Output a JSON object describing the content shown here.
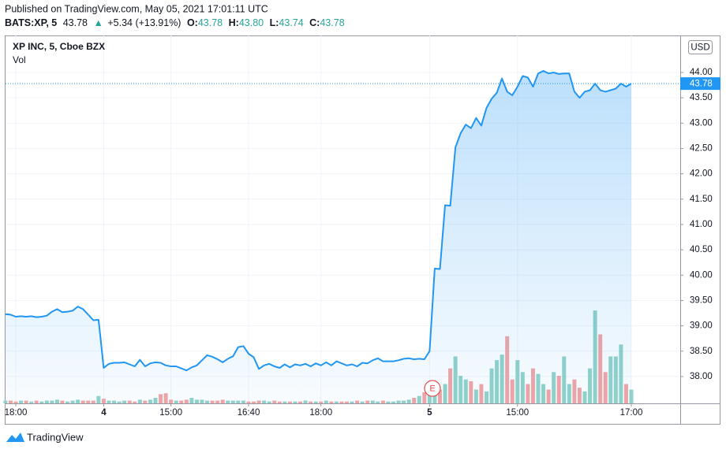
{
  "published": "Published on TradingView.com, May 05, 2021 17:01:11 UTC",
  "header": {
    "symbol": "BATS:XP, 5",
    "last": 43.78,
    "arrow": "▲",
    "change": "+5.34 (+13.91%)",
    "ohlc": [
      {
        "label": "O:",
        "value": "43.78"
      },
      {
        "label": "H:",
        "value": "43.80"
      },
      {
        "label": "L:",
        "value": "43.74"
      },
      {
        "label": "C:",
        "value": "43.78"
      }
    ]
  },
  "footer": "TradingView",
  "chart_data": {
    "type": "line",
    "title": "XP INC, 5, Cboe BZX",
    "currency": "USD",
    "event": "E",
    "categories": [
      null,
      null,
      "18:00",
      null,
      null,
      null,
      null,
      null,
      null,
      null,
      null,
      null,
      null,
      null,
      null,
      null,
      null,
      null,
      null,
      "4",
      null,
      null,
      null,
      null,
      null,
      null,
      null,
      null,
      null,
      null,
      null,
      null,
      "15:00",
      null,
      null,
      null,
      null,
      null,
      null,
      null,
      null,
      null,
      null,
      null,
      null,
      null,
      null,
      "16:40",
      null,
      null,
      null,
      null,
      null,
      null,
      null,
      null,
      null,
      null,
      null,
      null,
      null,
      "18:00",
      null,
      null,
      null,
      null,
      null,
      null,
      null,
      null,
      null,
      null,
      null,
      null,
      null,
      null,
      null,
      null,
      null,
      null,
      null,
      null,
      "5",
      null,
      null,
      null,
      null,
      null,
      null,
      null,
      null,
      null,
      null,
      null,
      null,
      null,
      null,
      null,
      null,
      "15:00",
      null,
      null,
      null,
      null,
      null,
      null,
      null,
      null,
      null,
      null,
      null,
      null,
      null,
      null,
      null,
      null,
      null,
      null,
      null,
      null,
      null,
      "17:00"
    ],
    "series": [
      {
        "name": "XP INC, 5, Cboe BZX",
        "color": "#2196f3",
        "values": [
          39.23,
          39.22,
          39.18,
          39.19,
          39.18,
          39.19,
          39.17,
          39.18,
          39.2,
          39.28,
          39.33,
          39.27,
          39.28,
          39.3,
          39.38,
          39.33,
          39.22,
          39.11,
          39.12,
          38.17,
          38.25,
          38.27,
          38.27,
          38.28,
          38.24,
          38.2,
          38.33,
          38.2,
          38.26,
          38.28,
          38.27,
          38.22,
          38.2,
          38.2,
          38.16,
          38.12,
          38.18,
          38.22,
          38.32,
          38.42,
          38.39,
          38.34,
          38.28,
          38.35,
          38.4,
          38.58,
          38.6,
          38.45,
          38.38,
          38.15,
          38.22,
          38.25,
          38.2,
          38.17,
          38.24,
          38.18,
          38.24,
          38.22,
          38.25,
          38.2,
          38.26,
          38.22,
          38.28,
          38.22,
          38.3,
          38.26,
          38.22,
          38.24,
          38.2,
          38.27,
          38.26,
          38.32,
          38.36,
          38.3,
          38.3,
          38.3,
          38.32,
          38.35,
          38.36,
          38.34,
          38.35,
          38.34,
          38.5,
          40.13,
          40.12,
          41.38,
          41.37,
          42.52,
          42.8,
          42.97,
          42.9,
          43.1,
          42.95,
          43.3,
          43.48,
          43.6,
          43.88,
          43.62,
          43.55,
          43.72,
          43.93,
          43.9,
          43.72,
          43.98,
          44.03,
          43.98,
          44.0,
          43.97,
          43.98,
          43.98,
          43.62,
          43.5,
          43.62,
          43.65,
          43.78,
          43.65,
          43.62,
          43.65,
          43.68,
          43.78,
          43.72,
          43.78
        ]
      },
      {
        "name": "Vol",
        "axis": "y2",
        "up_color": "#92d2c9",
        "down_color": "#f2a5a5",
        "values": [
          3,
          3,
          2,
          3,
          3,
          2,
          3,
          2,
          3,
          3,
          4,
          3,
          2,
          3,
          4,
          3,
          3,
          3,
          8,
          5,
          3,
          3,
          2,
          3,
          3,
          2,
          4,
          3,
          4,
          6,
          10,
          11,
          4,
          3,
          3,
          4,
          6,
          4,
          4,
          3,
          3,
          3,
          4,
          3,
          3,
          3,
          3,
          2,
          2,
          3,
          3,
          2,
          3,
          2,
          2,
          2,
          2,
          2,
          3,
          2,
          2,
          2,
          3,
          2,
          2,
          2,
          2,
          2,
          3,
          2,
          3,
          3,
          2,
          3,
          2,
          2,
          3,
          3,
          4,
          6,
          8,
          12,
          13,
          19,
          15,
          21,
          38,
          51,
          30,
          26,
          24,
          15,
          21,
          13,
          38,
          47,
          53,
          73,
          26,
          47,
          34,
          21,
          38,
          32,
          21,
          15,
          34,
          30,
          51,
          21,
          26,
          17,
          13,
          38,
          101,
          75,
          34,
          51,
          51,
          64,
          21,
          15
        ]
      }
    ],
    "ylim": [
      37.47,
      44.73
    ],
    "yticks": [
      {
        "value": 38,
        "label": "38.00"
      },
      {
        "value": 38.5,
        "label": "38.50"
      },
      {
        "value": 39,
        "label": "39.00"
      },
      {
        "value": 39.5,
        "label": "39.50"
      },
      {
        "value": 40,
        "label": "40.00"
      },
      {
        "value": 40.5,
        "label": "40.50"
      },
      {
        "value": 41,
        "label": "41.00"
      },
      {
        "value": 41.5,
        "label": "41.50"
      },
      {
        "value": 42,
        "label": "42.00"
      },
      {
        "value": 42.5,
        "label": "42.50"
      },
      {
        "value": 43,
        "label": "43.00"
      },
      {
        "value": 43.5,
        "label": "43.50"
      },
      {
        "value": 44,
        "label": "44.00"
      }
    ],
    "y2lim": [
      0,
      400
    ],
    "last_price": 43.78,
    "grid": true
  }
}
